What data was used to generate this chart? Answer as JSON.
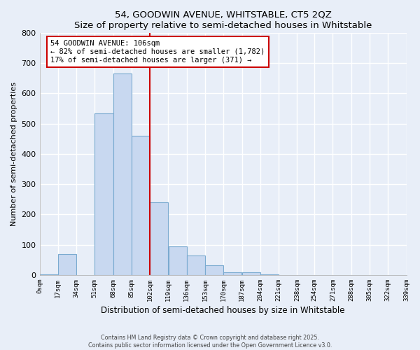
{
  "title": "54, GOODWIN AVENUE, WHITSTABLE, CT5 2QZ",
  "subtitle": "Size of property relative to semi-detached houses in Whitstable",
  "xlabel": "Distribution of semi-detached houses by size in Whitstable",
  "ylabel": "Number of semi-detached properties",
  "bin_edges": [
    0,
    17,
    34,
    51,
    68,
    85,
    102,
    119,
    136,
    153,
    170,
    187,
    204,
    221,
    238,
    254,
    271,
    288,
    305,
    322,
    339
  ],
  "bin_labels": [
    "0sqm",
    "17sqm",
    "34sqm",
    "51sqm",
    "68sqm",
    "85sqm",
    "102sqm",
    "119sqm",
    "136sqm",
    "153sqm",
    "170sqm",
    "187sqm",
    "204sqm",
    "221sqm",
    "238sqm",
    "254sqm",
    "271sqm",
    "288sqm",
    "305sqm",
    "322sqm",
    "339sqm"
  ],
  "counts": [
    2,
    70,
    0,
    535,
    665,
    460,
    240,
    95,
    65,
    33,
    8,
    10,
    3,
    0,
    0,
    0,
    0,
    0,
    0,
    0
  ],
  "bar_color": "#c8d8f0",
  "bar_edge_color": "#7aaad0",
  "vline_x": 102,
  "vline_color": "#cc0000",
  "ylim": [
    0,
    800
  ],
  "yticks": [
    0,
    100,
    200,
    300,
    400,
    500,
    600,
    700,
    800
  ],
  "annotation_line1": "54 GOODWIN AVENUE: 106sqm",
  "annotation_line2": "← 82% of semi-detached houses are smaller (1,782)",
  "annotation_line3": "17% of semi-detached houses are larger (371) →",
  "footer1": "Contains HM Land Registry data © Crown copyright and database right 2025.",
  "footer2": "Contains public sector information licensed under the Open Government Licence v3.0.",
  "bg_color": "#e8eef8",
  "plot_bg_color": "#e8eef8"
}
